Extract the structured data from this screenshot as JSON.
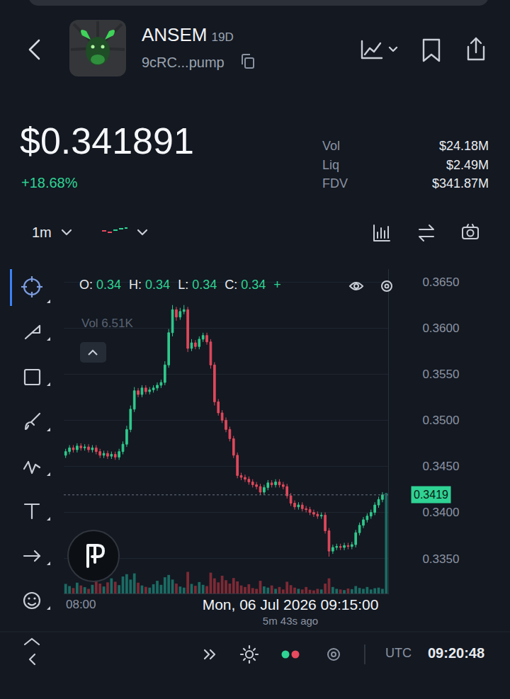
{
  "header": {
    "symbol": "ANSEM",
    "age": "19D",
    "address": "9cRC...pump",
    "price": "$0.341891",
    "change": "+18.68%",
    "stats": [
      {
        "label": "Vol",
        "value": "$24.18M"
      },
      {
        "label": "Liq",
        "value": "$2.49M"
      },
      {
        "label": "FDV",
        "value": "$341.87M"
      }
    ]
  },
  "toolbar": {
    "interval": "1m"
  },
  "chart_data": {
    "type": "candlestick",
    "ohlc_legend": [
      {
        "label": "O:",
        "value": "0.34"
      },
      {
        "label": "H:",
        "value": "0.34"
      },
      {
        "label": "L:",
        "value": "0.34"
      },
      {
        "label": "C:",
        "value": "0.34"
      }
    ],
    "ohlc_change": "+",
    "volume_label": "Vol 6.51K",
    "crosshair_time": "Mon, 06 Jul 2026 09:15:00",
    "time_ago": "5m 43s ago",
    "last_price": 0.3419,
    "categories": [
      null,
      null,
      null,
      null,
      "08:00",
      null,
      null,
      null,
      null,
      null,
      null,
      null,
      null,
      null,
      null,
      null,
      null,
      null,
      null,
      null,
      null,
      null,
      null,
      null,
      null,
      null,
      null,
      null,
      null,
      null,
      null,
      null,
      null,
      null,
      null,
      null,
      null,
      null,
      null,
      null,
      null,
      null,
      null,
      null,
      null,
      null,
      null,
      null,
      null,
      null,
      null,
      null,
      null,
      null,
      null,
      null,
      null,
      null,
      null,
      null,
      null,
      null,
      null,
      null,
      null,
      null,
      null,
      null,
      null,
      null,
      null,
      null,
      null,
      null,
      null,
      null,
      null,
      null,
      null,
      null,
      null,
      null,
      null,
      null,
      null
    ],
    "open": [
      0.3462,
      0.3466,
      0.347,
      0.3468,
      0.3472,
      0.347,
      0.3471,
      0.3468,
      0.347,
      0.3466,
      0.3462,
      0.3464,
      0.3461,
      0.3463,
      0.346,
      0.3466,
      0.3474,
      0.349,
      0.3512,
      0.3532,
      0.3528,
      0.3535,
      0.3531,
      0.3533,
      0.3535,
      0.3538,
      0.3541,
      0.356,
      0.3595,
      0.362,
      0.3612,
      0.3618,
      0.362,
      0.3578,
      0.3584,
      0.358,
      0.3588,
      0.3592,
      0.3585,
      0.356,
      0.352,
      0.3508,
      0.35,
      0.349,
      0.348,
      0.3462,
      0.344,
      0.3438,
      0.3436,
      0.3433,
      0.343,
      0.3428,
      0.3422,
      0.3427,
      0.3432,
      0.343,
      0.3433,
      0.343,
      0.3428,
      0.3418,
      0.341,
      0.3406,
      0.3408,
      0.3404,
      0.3403,
      0.34,
      0.3398,
      0.3396,
      0.3397,
      0.338,
      0.3358,
      0.3362,
      0.3363,
      0.3362,
      0.3364,
      0.3363,
      0.3365,
      0.3378,
      0.3386,
      0.3392,
      0.3396,
      0.34,
      0.3408,
      0.3414,
      0.3419
    ],
    "high": [
      0.3469,
      0.3473,
      0.3473,
      0.3475,
      0.3475,
      0.3474,
      0.3474,
      0.3473,
      0.3473,
      0.3469,
      0.3467,
      0.3467,
      0.3466,
      0.3466,
      0.3469,
      0.3477,
      0.3494,
      0.3516,
      0.3536,
      0.3535,
      0.3538,
      0.3538,
      0.3536,
      0.3538,
      0.3541,
      0.3544,
      0.3564,
      0.3599,
      0.3625,
      0.3623,
      0.3622,
      0.3625,
      0.3623,
      0.3588,
      0.3587,
      0.3591,
      0.3595,
      0.3595,
      0.3588,
      0.3563,
      0.3523,
      0.3511,
      0.3503,
      0.3493,
      0.3483,
      0.3465,
      0.3443,
      0.3441,
      0.3439,
      0.3436,
      0.3433,
      0.3431,
      0.343,
      0.3435,
      0.3435,
      0.3436,
      0.3436,
      0.3433,
      0.3431,
      0.3421,
      0.3413,
      0.3411,
      0.3411,
      0.3407,
      0.3406,
      0.3403,
      0.3401,
      0.34,
      0.34,
      0.3383,
      0.3365,
      0.3366,
      0.3366,
      0.3367,
      0.3367,
      0.3368,
      0.3381,
      0.3389,
      0.3395,
      0.3399,
      0.3403,
      0.3411,
      0.3417,
      0.3422,
      0.3419
    ],
    "low": [
      0.3459,
      0.3463,
      0.3465,
      0.3465,
      0.3467,
      0.3467,
      0.3465,
      0.3465,
      0.3463,
      0.3459,
      0.3459,
      0.3458,
      0.3458,
      0.3457,
      0.3457,
      0.3463,
      0.3471,
      0.3487,
      0.3509,
      0.3525,
      0.3525,
      0.3528,
      0.3528,
      0.353,
      0.3532,
      0.3535,
      0.3538,
      0.3557,
      0.3591,
      0.3608,
      0.3609,
      0.3615,
      0.3574,
      0.3575,
      0.3577,
      0.3577,
      0.3585,
      0.3582,
      0.3556,
      0.3516,
      0.3505,
      0.3497,
      0.3487,
      0.3477,
      0.3459,
      0.3437,
      0.3435,
      0.3433,
      0.343,
      0.3427,
      0.3425,
      0.3419,
      0.3419,
      0.3424,
      0.3427,
      0.3427,
      0.3427,
      0.3425,
      0.3415,
      0.3407,
      0.3403,
      0.3403,
      0.3401,
      0.34,
      0.3397,
      0.3395,
      0.3393,
      0.3393,
      0.3377,
      0.3352,
      0.3355,
      0.3359,
      0.3359,
      0.3359,
      0.336,
      0.336,
      0.3362,
      0.3375,
      0.3383,
      0.3389,
      0.3393,
      0.3397,
      0.3405,
      0.3411,
      0.3419
    ],
    "close": [
      0.3466,
      0.347,
      0.3468,
      0.3472,
      0.347,
      0.3471,
      0.3468,
      0.347,
      0.3466,
      0.3462,
      0.3464,
      0.3461,
      0.3463,
      0.346,
      0.3466,
      0.3474,
      0.349,
      0.3512,
      0.3532,
      0.3528,
      0.3535,
      0.3531,
      0.3533,
      0.3535,
      0.3538,
      0.3541,
      0.356,
      0.3595,
      0.362,
      0.3612,
      0.3618,
      0.362,
      0.3578,
      0.3584,
      0.358,
      0.3588,
      0.3592,
      0.3585,
      0.356,
      0.352,
      0.3508,
      0.35,
      0.349,
      0.348,
      0.3462,
      0.344,
      0.3438,
      0.3436,
      0.3433,
      0.343,
      0.3428,
      0.3422,
      0.3427,
      0.3432,
      0.343,
      0.3433,
      0.343,
      0.3428,
      0.3418,
      0.341,
      0.3406,
      0.3408,
      0.3404,
      0.3403,
      0.34,
      0.3398,
      0.3396,
      0.3397,
      0.338,
      0.3358,
      0.3362,
      0.3363,
      0.3362,
      0.3364,
      0.3363,
      0.3365,
      0.3378,
      0.3386,
      0.3392,
      0.3396,
      0.34,
      0.3408,
      0.3414,
      0.3419,
      0.3419
    ],
    "volume": [
      620,
      480,
      350,
      700,
      520,
      410,
      300,
      560,
      880,
      640,
      450,
      720,
      980,
      760,
      540,
      1100,
      1250,
      900,
      1300,
      700,
      520,
      430,
      380,
      600,
      820,
      560,
      1050,
      1200,
      900,
      640,
      450,
      380,
      1400,
      620,
      500,
      740,
      560,
      480,
      1350,
      980,
      720,
      1150,
      860,
      640,
      1000,
      780,
      520,
      420,
      600,
      350,
      300,
      820,
      460,
      380,
      520,
      300,
      420,
      260,
      760,
      540,
      380,
      300,
      260,
      420,
      240,
      200,
      300,
      260,
      640,
      980,
      420,
      300,
      260,
      220,
      320,
      280,
      480,
      360,
      300,
      420,
      260,
      340,
      380,
      300,
      6510
    ],
    "ylim": [
      0.3312,
      0.3664
    ],
    "yticks": [
      {
        "value": 0.335,
        "label": "0.3350"
      },
      {
        "value": 0.34,
        "label": "0.3400"
      },
      {
        "value": 0.345,
        "label": "0.3450"
      },
      {
        "value": 0.35,
        "label": "0.3500"
      },
      {
        "value": 0.355,
        "label": "0.3550"
      },
      {
        "value": 0.36,
        "label": "0.3600"
      },
      {
        "value": 0.365,
        "label": "0.3650"
      }
    ],
    "y2lim": [
      0,
      21000
    ],
    "y2ticks": [],
    "grid": true
  },
  "footer": {
    "timezone": "UTC",
    "clock": "09:20:48"
  }
}
